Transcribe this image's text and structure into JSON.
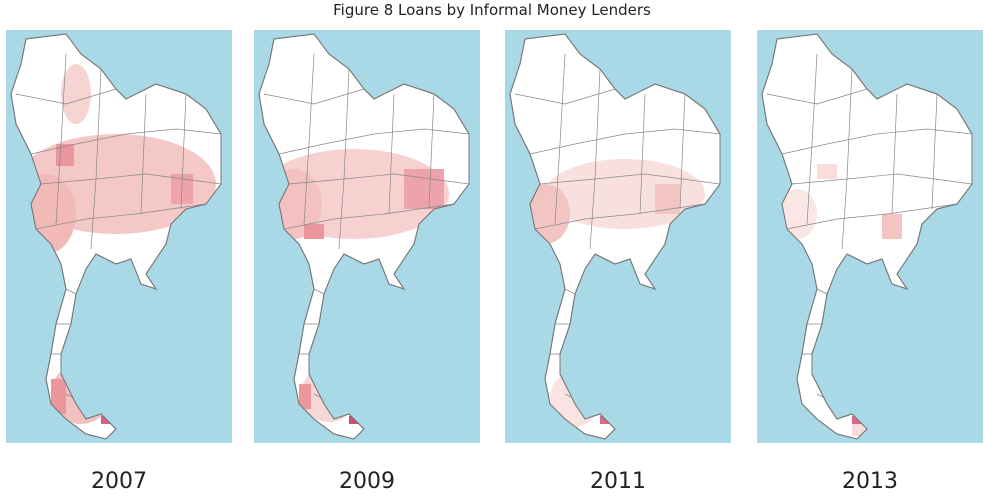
{
  "title": "Figure 8 Loans by Informal Money Lenders",
  "maps": [
    {
      "label": "2007"
    },
    {
      "label": "2009"
    },
    {
      "label": "2011"
    },
    {
      "label": "2013"
    }
  ]
}
